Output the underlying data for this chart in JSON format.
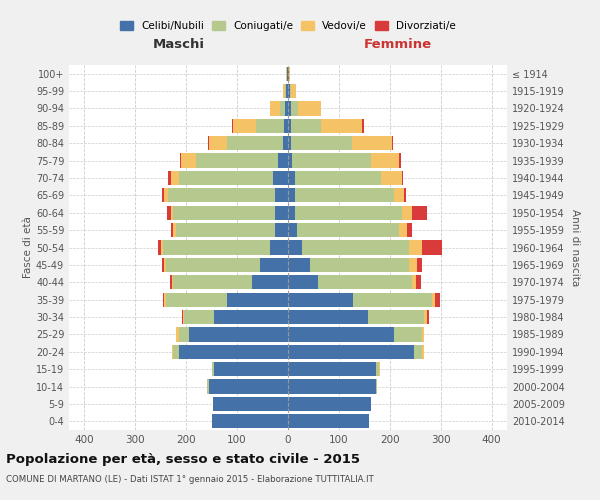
{
  "age_groups": [
    "0-4",
    "5-9",
    "10-14",
    "15-19",
    "20-24",
    "25-29",
    "30-34",
    "35-39",
    "40-44",
    "45-49",
    "50-54",
    "55-59",
    "60-64",
    "65-69",
    "70-74",
    "75-79",
    "80-84",
    "85-89",
    "90-94",
    "95-99",
    "100+"
  ],
  "birth_years": [
    "2010-2014",
    "2005-2009",
    "2000-2004",
    "1995-1999",
    "1990-1994",
    "1985-1989",
    "1980-1984",
    "1975-1979",
    "1970-1974",
    "1965-1969",
    "1960-1964",
    "1955-1959",
    "1950-1954",
    "1945-1949",
    "1940-1944",
    "1935-1939",
    "1930-1934",
    "1925-1929",
    "1920-1924",
    "1915-1919",
    "≤ 1914"
  ],
  "colors": {
    "celibi": "#4472a8",
    "coniugati": "#b5c98e",
    "vedovi": "#f5c265",
    "divorziati": "#d93b3b"
  },
  "male": {
    "celibi": [
      150,
      148,
      155,
      145,
      215,
      195,
      145,
      120,
      70,
      55,
      35,
      25,
      25,
      25,
      30,
      20,
      10,
      8,
      5,
      3,
      2
    ],
    "coniugati": [
      0,
      0,
      5,
      5,
      10,
      20,
      60,
      120,
      155,
      185,
      210,
      195,
      200,
      210,
      185,
      160,
      110,
      55,
      10,
      2,
      0
    ],
    "vedovi": [
      0,
      0,
      0,
      0,
      2,
      5,
      2,
      3,
      2,
      3,
      5,
      5,
      5,
      8,
      15,
      30,
      35,
      45,
      20,
      5,
      1
    ],
    "divorziati": [
      0,
      0,
      0,
      0,
      0,
      0,
      2,
      3,
      5,
      5,
      5,
      5,
      8,
      5,
      5,
      2,
      2,
      2,
      0,
      0,
      0
    ]
  },
  "female": {
    "nubili": [
      160,
      163,
      173,
      173,
      248,
      208,
      158,
      128,
      58,
      43,
      28,
      18,
      13,
      13,
      13,
      8,
      5,
      5,
      5,
      3,
      2
    ],
    "coniugate": [
      0,
      0,
      2,
      5,
      15,
      55,
      110,
      155,
      185,
      195,
      210,
      200,
      210,
      195,
      170,
      155,
      120,
      60,
      15,
      2,
      0
    ],
    "vedove": [
      0,
      0,
      0,
      2,
      5,
      5,
      5,
      5,
      8,
      15,
      25,
      15,
      20,
      20,
      40,
      55,
      80,
      80,
      45,
      10,
      2
    ],
    "divorziate": [
      0,
      0,
      0,
      0,
      0,
      0,
      3,
      10,
      10,
      10,
      40,
      10,
      30,
      3,
      2,
      3,
      2,
      5,
      0,
      0,
      0
    ]
  },
  "title": "Popolazione per età, sesso e stato civile - 2015",
  "subtitle": "COMUNE DI MARTANO (LE) - Dati ISTAT 1° gennaio 2015 - Elaborazione TUTTITALIA.IT",
  "xlabel_left": "Maschi",
  "xlabel_right": "Femmine",
  "ylabel_left": "Fasce di età",
  "ylabel_right": "Anni di nascita",
  "xlim": 430,
  "background_color": "#f0f0f0",
  "plot_bg": "#ffffff",
  "legend_labels": [
    "Celibi/Nubili",
    "Coniugati/e",
    "Vedovi/e",
    "Divorziati/e"
  ]
}
